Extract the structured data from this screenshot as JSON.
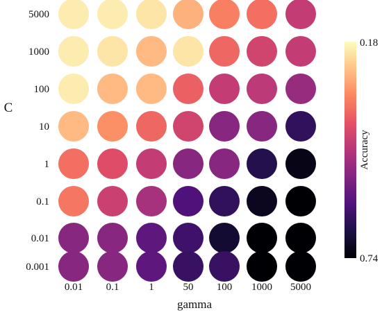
{
  "chart_data": {
    "type": "heatmap",
    "marker": "circle",
    "xlabel": "gamma",
    "ylabel": "C",
    "x": [
      "0.01",
      "0.1",
      "1",
      "50",
      "100",
      "1000",
      "5000"
    ],
    "y": [
      "5000",
      "1000",
      "100",
      "10",
      "1",
      "0.1",
      "0.01",
      "0.001"
    ],
    "colorbar": {
      "label": "Accuracy",
      "top_tick": "0.18",
      "bottom_tick": "0.74",
      "colormap": "magma"
    },
    "values": [
      [
        0.2,
        0.2,
        0.21,
        0.27,
        0.33,
        0.35,
        0.44
      ],
      [
        0.2,
        0.21,
        0.26,
        0.21,
        0.36,
        0.42,
        0.44
      ],
      [
        0.2,
        0.26,
        0.26,
        0.37,
        0.44,
        0.45,
        0.5
      ],
      [
        0.26,
        0.31,
        0.36,
        0.42,
        0.52,
        0.52,
        0.64
      ],
      [
        0.35,
        0.4,
        0.44,
        0.52,
        0.52,
        0.66,
        0.72
      ],
      [
        0.34,
        0.43,
        0.48,
        0.6,
        0.64,
        0.71,
        0.74
      ],
      [
        0.52,
        0.52,
        0.58,
        0.62,
        0.69,
        0.74,
        0.74
      ],
      [
        0.52,
        0.52,
        0.58,
        0.63,
        0.63,
        0.74,
        0.74
      ]
    ]
  }
}
